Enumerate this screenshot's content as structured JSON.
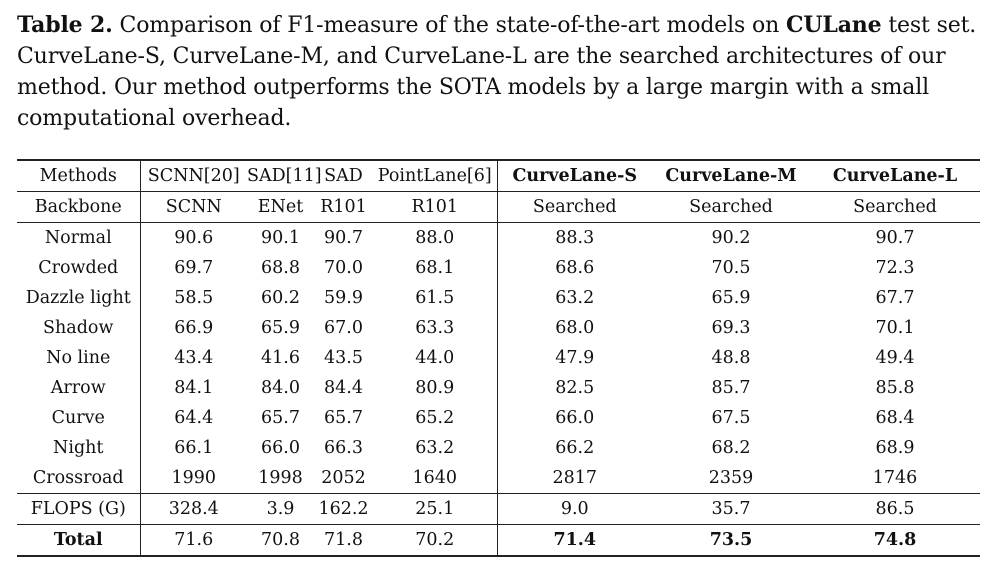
{
  "caption": {
    "label": "Table 2.",
    "text_before": " Comparison of F1-measure of the state-of-the-art models on ",
    "dataset": "CULane",
    "text_after": " test set. CurveLane-S, CurveLane-M, and CurveLane-L are the searched architectures of our method. Our method outperforms the SOTA models by a large margin with a small computational overhead."
  },
  "table": {
    "header": {
      "methods_label": "Methods",
      "methods": [
        "SCNN[20]",
        "SAD[11]",
        "SAD",
        "PointLane[6]",
        "CurveLane-S",
        "CurveLane-M",
        "CurveLane-L"
      ],
      "backbone_label": "Backbone",
      "backbones": [
        "SCNN",
        "ENet",
        "R101",
        "R101",
        "Searched",
        "Searched",
        "Searched"
      ]
    },
    "rows": [
      {
        "label": "Normal",
        "values": [
          "90.6",
          "90.1",
          "90.7",
          "88.0",
          "88.3",
          "90.2",
          "90.7"
        ]
      },
      {
        "label": "Crowded",
        "values": [
          "69.7",
          "68.8",
          "70.0",
          "68.1",
          "68.6",
          "70.5",
          "72.3"
        ]
      },
      {
        "label": "Dazzle light",
        "values": [
          "58.5",
          "60.2",
          "59.9",
          "61.5",
          "63.2",
          "65.9",
          "67.7"
        ]
      },
      {
        "label": "Shadow",
        "values": [
          "66.9",
          "65.9",
          "67.0",
          "63.3",
          "68.0",
          "69.3",
          "70.1"
        ]
      },
      {
        "label": "No line",
        "values": [
          "43.4",
          "41.6",
          "43.5",
          "44.0",
          "47.9",
          "48.8",
          "49.4"
        ]
      },
      {
        "label": "Arrow",
        "values": [
          "84.1",
          "84.0",
          "84.4",
          "80.9",
          "82.5",
          "85.7",
          "85.8"
        ]
      },
      {
        "label": "Curve",
        "values": [
          "64.4",
          "65.7",
          "65.7",
          "65.2",
          "66.0",
          "67.5",
          "68.4"
        ]
      },
      {
        "label": "Night",
        "values": [
          "66.1",
          "66.0",
          "66.3",
          "63.2",
          "66.2",
          "68.2",
          "68.9"
        ]
      },
      {
        "label": "Crossroad",
        "values": [
          "1990",
          "1998",
          "2052",
          "1640",
          "2817",
          "2359",
          "1746"
        ]
      }
    ],
    "flops": {
      "label": "FLOPS (G)",
      "values": [
        "328.4",
        "3.9",
        "162.2",
        "25.1",
        "9.0",
        "35.7",
        "86.5"
      ]
    },
    "total": {
      "label": "Total",
      "values": [
        "71.6",
        "70.8",
        "71.8",
        "70.2",
        "71.4",
        "73.5",
        "74.8"
      ]
    }
  }
}
